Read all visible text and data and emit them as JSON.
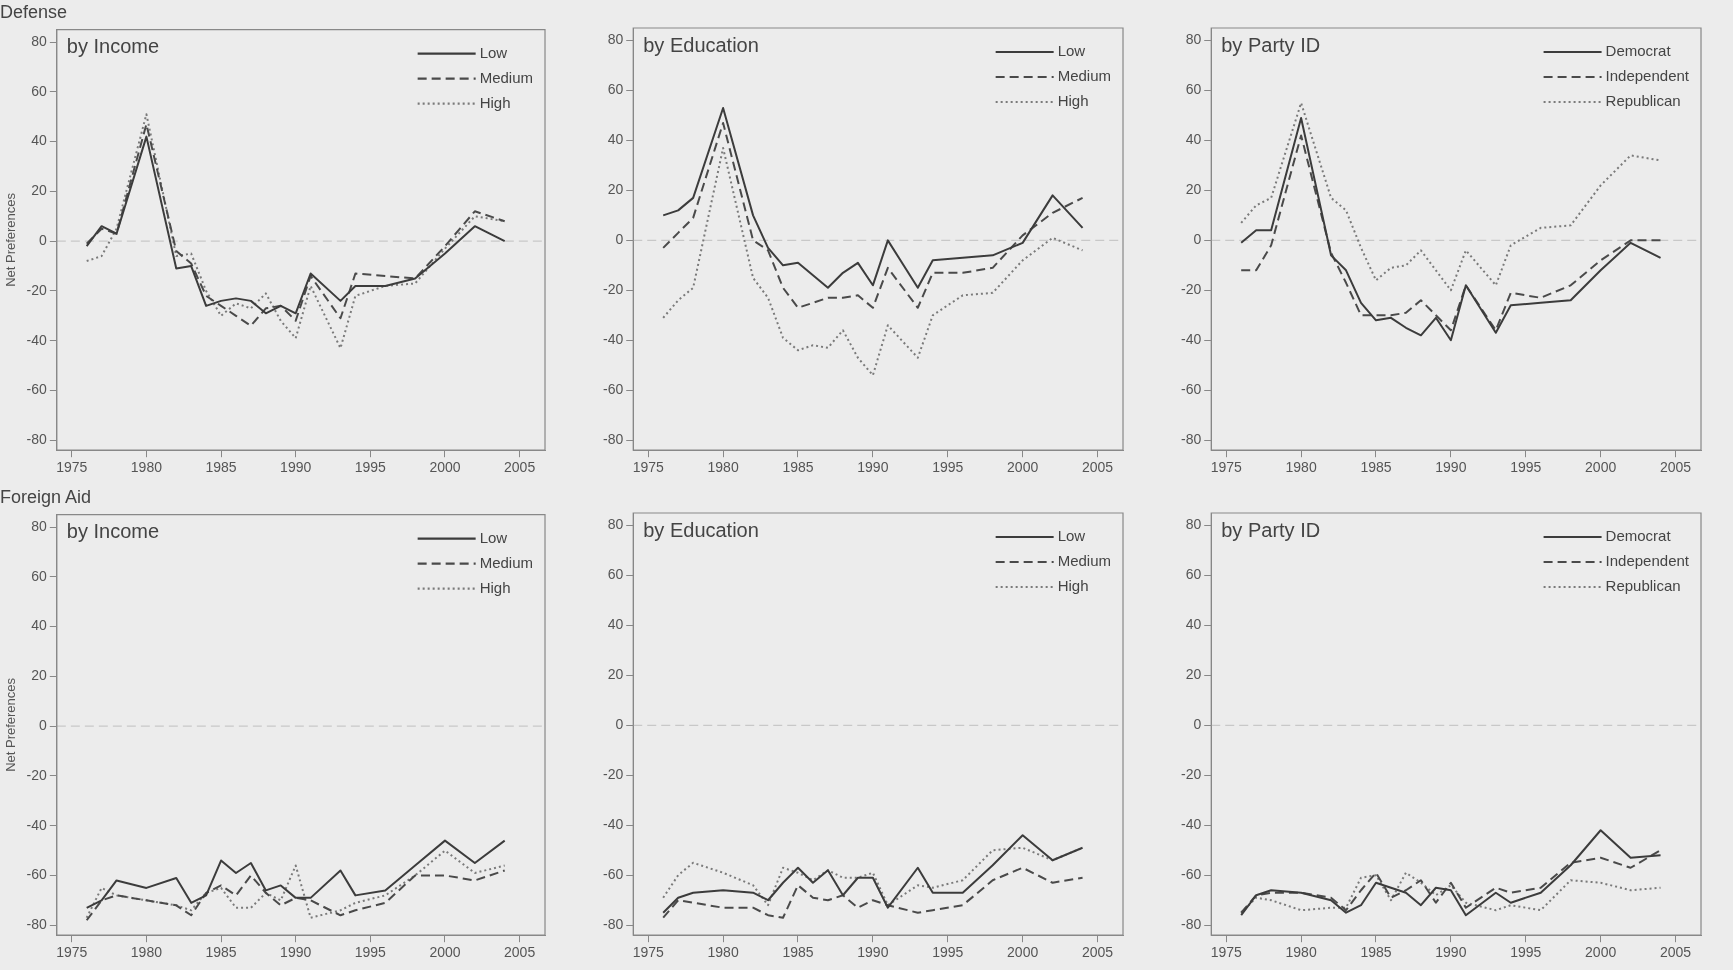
{
  "chart_data": [
    {
      "type": "line",
      "title": "Defense",
      "subtitle": "by Income",
      "ylabel": "Net Preferences",
      "x": [
        1976,
        1977,
        1978,
        1980,
        1982,
        1983,
        1984,
        1985,
        1986,
        1987,
        1988,
        1989,
        1990,
        1991,
        1993,
        1994,
        1996,
        1998,
        2000,
        2002,
        2004
      ],
      "xlim": [
        1974,
        2006.7
      ],
      "xticks": [
        1975,
        1980,
        1985,
        1990,
        1995,
        2000,
        2005
      ],
      "ylim": [
        -84,
        85
      ],
      "yticks": [
        -80,
        -60,
        -40,
        -20,
        0,
        20,
        40,
        60,
        80
      ],
      "grid": false,
      "legend": "top right",
      "marker": "none",
      "ref_lines": [
        {
          "axis": "y",
          "value": 0,
          "color": "#c8c8c8",
          "line_style": "dashed"
        }
      ],
      "series": [
        {
          "name": "Low",
          "color": "#3c3c3c",
          "line_style": "solid",
          "values": [
            -2,
            6,
            3,
            42,
            -11,
            -10,
            -26,
            -24,
            -23,
            -24,
            -29,
            -26,
            -29,
            -13,
            -24,
            -18,
            -18,
            -15,
            -5,
            6,
            0
          ]
        },
        {
          "name": "Medium",
          "color": "#4a4a4a",
          "line_style": "dashed",
          "values": [
            -1,
            5,
            3,
            47,
            -4,
            -9,
            -22,
            -26,
            -30,
            -34,
            -27,
            -26,
            -32,
            -14,
            -31,
            -13,
            -14,
            -15,
            -2,
            12,
            8
          ]
        },
        {
          "name": "High",
          "color": "#7a7a7a",
          "line_style": "dotted",
          "values": [
            -8,
            -6,
            5,
            51,
            -6,
            -5,
            -20,
            -30,
            -25,
            -27,
            -21,
            -32,
            -39,
            -18,
            -43,
            -22,
            -18,
            -17,
            -3,
            10,
            8
          ]
        }
      ]
    },
    {
      "type": "line",
      "subtitle": "by Education",
      "x": [
        1976,
        1977,
        1978,
        1980,
        1982,
        1983,
        1984,
        1985,
        1986,
        1987,
        1988,
        1989,
        1990,
        1991,
        1993,
        1994,
        1996,
        1998,
        2000,
        2002,
        2004
      ],
      "xlim": [
        1974,
        2006.7
      ],
      "xticks": [
        1975,
        1980,
        1985,
        1990,
        1995,
        2000,
        2005
      ],
      "ylim": [
        -84,
        85
      ],
      "yticks": [
        -80,
        -60,
        -40,
        -20,
        0,
        20,
        40,
        60,
        80
      ],
      "grid": false,
      "legend": "top right",
      "marker": "none",
      "ref_lines": [
        {
          "axis": "y",
          "value": 0,
          "color": "#c8c8c8",
          "line_style": "dashed"
        }
      ],
      "series": [
        {
          "name": "Low",
          "color": "#3c3c3c",
          "line_style": "solid",
          "values": [
            10,
            12,
            17,
            53,
            10,
            -3,
            -10,
            -9,
            -14,
            -19,
            -13,
            -9,
            -18,
            0,
            -19,
            -8,
            -7,
            -6,
            -1,
            18,
            5
          ]
        },
        {
          "name": "Medium",
          "color": "#4a4a4a",
          "line_style": "dashed",
          "values": [
            -3,
            3,
            9,
            47,
            0,
            -4,
            -19,
            -27,
            -25,
            -23,
            -23,
            -22,
            -27,
            -11,
            -27,
            -13,
            -13,
            -11,
            2,
            11,
            17
          ]
        },
        {
          "name": "High",
          "color": "#7a7a7a",
          "line_style": "dotted",
          "values": [
            -31,
            -24,
            -19,
            37,
            -15,
            -23,
            -39,
            -44,
            -42,
            -43,
            -36,
            -47,
            -54,
            -34,
            -47,
            -30,
            -22,
            -21,
            -8,
            1,
            -4
          ]
        }
      ]
    },
    {
      "type": "line",
      "subtitle": "by Party ID",
      "x": [
        1976,
        1977,
        1978,
        1980,
        1982,
        1983,
        1984,
        1985,
        1986,
        1987,
        1988,
        1989,
        1990,
        1991,
        1993,
        1994,
        1996,
        1998,
        2000,
        2002,
        2004
      ],
      "xlim": [
        1974,
        2006.7
      ],
      "xticks": [
        1975,
        1980,
        1985,
        1990,
        1995,
        2000,
        2005
      ],
      "ylim": [
        -84,
        85
      ],
      "yticks": [
        -80,
        -60,
        -40,
        -20,
        0,
        20,
        40,
        60,
        80
      ],
      "grid": false,
      "legend": "top right",
      "marker": "none",
      "ref_lines": [
        {
          "axis": "y",
          "value": 0,
          "color": "#c8c8c8",
          "line_style": "dashed"
        }
      ],
      "series": [
        {
          "name": "Democrat",
          "color": "#3c3c3c",
          "line_style": "solid",
          "values": [
            -1,
            4,
            4,
            49,
            -6,
            -12,
            -25,
            -32,
            -31,
            -35,
            -38,
            -31,
            -40,
            -18,
            -37,
            -26,
            -25,
            -24,
            -12,
            -1,
            -7
          ]
        },
        {
          "name": "Independent",
          "color": "#4a4a4a",
          "line_style": "dashed",
          "values": [
            -12,
            -12,
            -2,
            42,
            -5,
            -17,
            -30,
            -30,
            -30,
            -29,
            -24,
            -30,
            -36,
            -18,
            -36,
            -21,
            -23,
            -18,
            -8,
            0,
            0
          ]
        },
        {
          "name": "Republican",
          "color": "#7a7a7a",
          "line_style": "dotted",
          "values": [
            7,
            14,
            17,
            55,
            17,
            12,
            -3,
            -16,
            -11,
            -10,
            -4,
            -12,
            -20,
            -4,
            -18,
            -2,
            5,
            6,
            22,
            34,
            32
          ]
        }
      ]
    },
    {
      "type": "line",
      "title": "Foreign Aid",
      "subtitle": "by Income",
      "ylabel": "Net Preferences",
      "x": [
        1976,
        1977,
        1978,
        1980,
        1982,
        1983,
        1984,
        1985,
        1986,
        1987,
        1988,
        1989,
        1990,
        1991,
        1993,
        1994,
        1996,
        1998,
        2000,
        2002,
        2004
      ],
      "xlim": [
        1974,
        2006.7
      ],
      "xticks": [
        1975,
        1980,
        1985,
        1990,
        1995,
        2000,
        2005
      ],
      "ylim": [
        -84,
        85
      ],
      "yticks": [
        -80,
        -60,
        -40,
        -20,
        0,
        20,
        40,
        60,
        80
      ],
      "grid": false,
      "legend": "top right",
      "marker": "none",
      "ref_lines": [
        {
          "axis": "y",
          "value": 0,
          "color": "#c8c8c8",
          "line_style": "dashed"
        }
      ],
      "series": [
        {
          "name": "Low",
          "color": "#3c3c3c",
          "line_style": "solid",
          "values": [
            -73,
            -70,
            -62,
            -65,
            -61,
            -71,
            -68,
            -54,
            -59,
            -55,
            -66,
            -64,
            -69,
            -69,
            -58,
            -68,
            -66,
            -56,
            -46,
            -55,
            -46
          ]
        },
        {
          "name": "Medium",
          "color": "#4a4a4a",
          "line_style": "dashed",
          "values": [
            -78,
            -70,
            -68,
            -70,
            -72,
            -76,
            -67,
            -64,
            -68,
            -60,
            -67,
            -72,
            -69,
            -70,
            -76,
            -74,
            -71,
            -60,
            -60,
            -62,
            -58
          ]
        },
        {
          "name": "High",
          "color": "#7a7a7a",
          "line_style": "dotted",
          "values": [
            -77,
            -65,
            -68,
            -70,
            -72,
            -74,
            -67,
            -65,
            -73,
            -73,
            -67,
            -70,
            -56,
            -77,
            -74,
            -71,
            -68,
            -60,
            -50,
            -59,
            -56
          ]
        }
      ]
    },
    {
      "type": "line",
      "subtitle": "by Education",
      "x": [
        1976,
        1977,
        1978,
        1980,
        1982,
        1983,
        1984,
        1985,
        1986,
        1987,
        1988,
        1989,
        1990,
        1991,
        1993,
        1994,
        1996,
        1998,
        2000,
        2002,
        2004
      ],
      "xlim": [
        1974,
        2006.7
      ],
      "xticks": [
        1975,
        1980,
        1985,
        1990,
        1995,
        2000,
        2005
      ],
      "ylim": [
        -84,
        85
      ],
      "yticks": [
        -80,
        -60,
        -40,
        -20,
        0,
        20,
        40,
        60,
        80
      ],
      "grid": false,
      "legend": "top right",
      "marker": "none",
      "ref_lines": [
        {
          "axis": "y",
          "value": 0,
          "color": "#c8c8c8",
          "line_style": "dashed"
        }
      ],
      "series": [
        {
          "name": "Low",
          "color": "#3c3c3c",
          "line_style": "solid",
          "values": [
            -75,
            -69,
            -67,
            -66,
            -67,
            -70,
            -63,
            -57,
            -63,
            -58,
            -68,
            -61,
            -61,
            -73,
            -57,
            -67,
            -67,
            -56,
            -44,
            -54,
            -49
          ]
        },
        {
          "name": "Medium",
          "color": "#4a4a4a",
          "line_style": "dashed",
          "values": [
            -77,
            -70,
            -71,
            -73,
            -73,
            -76,
            -77,
            -64,
            -69,
            -70,
            -68,
            -73,
            -70,
            -72,
            -75,
            -74,
            -72,
            -62,
            -57,
            -63,
            -61
          ]
        },
        {
          "name": "High",
          "color": "#7a7a7a",
          "line_style": "dotted",
          "values": [
            -69,
            -60,
            -55,
            -59,
            -64,
            -72,
            -57,
            -59,
            -62,
            -58,
            -61,
            -61,
            -59,
            -72,
            -64,
            -65,
            -62,
            -50,
            -49,
            -54,
            -49
          ]
        }
      ]
    },
    {
      "type": "line",
      "subtitle": "by Party ID",
      "x": [
        1976,
        1977,
        1978,
        1980,
        1982,
        1983,
        1984,
        1985,
        1986,
        1987,
        1988,
        1989,
        1990,
        1991,
        1993,
        1994,
        1996,
        1998,
        2000,
        2002,
        2004
      ],
      "xlim": [
        1974,
        2006.7
      ],
      "xticks": [
        1975,
        1980,
        1985,
        1990,
        1995,
        2000,
        2005
      ],
      "ylim": [
        -84,
        85
      ],
      "yticks": [
        -80,
        -60,
        -40,
        -20,
        0,
        20,
        40,
        60,
        80
      ],
      "grid": false,
      "legend": "top right",
      "marker": "none",
      "ref_lines": [
        {
          "axis": "y",
          "value": 0,
          "color": "#c8c8c8",
          "line_style": "dashed"
        }
      ],
      "series": [
        {
          "name": "Democrat",
          "color": "#3c3c3c",
          "line_style": "solid",
          "values": [
            -76,
            -68,
            -66,
            -67,
            -70,
            -75,
            -72,
            -63,
            -65,
            -67,
            -72,
            -65,
            -66,
            -76,
            -67,
            -71,
            -67,
            -56,
            -42,
            -53,
            -52
          ]
        },
        {
          "name": "Independent",
          "color": "#4a4a4a",
          "line_style": "dashed",
          "values": [
            -75,
            -68,
            -67,
            -67,
            -69,
            -74,
            -66,
            -59,
            -69,
            -66,
            -62,
            -71,
            -63,
            -73,
            -65,
            -67,
            -65,
            -55,
            -53,
            -57,
            -50
          ]
        },
        {
          "name": "Republican",
          "color": "#7a7a7a",
          "line_style": "dotted",
          "values": [
            -75,
            -69,
            -70,
            -74,
            -73,
            -73,
            -61,
            -60,
            -70,
            -59,
            -63,
            -68,
            -64,
            -71,
            -74,
            -72,
            -74,
            -62,
            -63,
            -66,
            -65
          ]
        }
      ]
    }
  ]
}
